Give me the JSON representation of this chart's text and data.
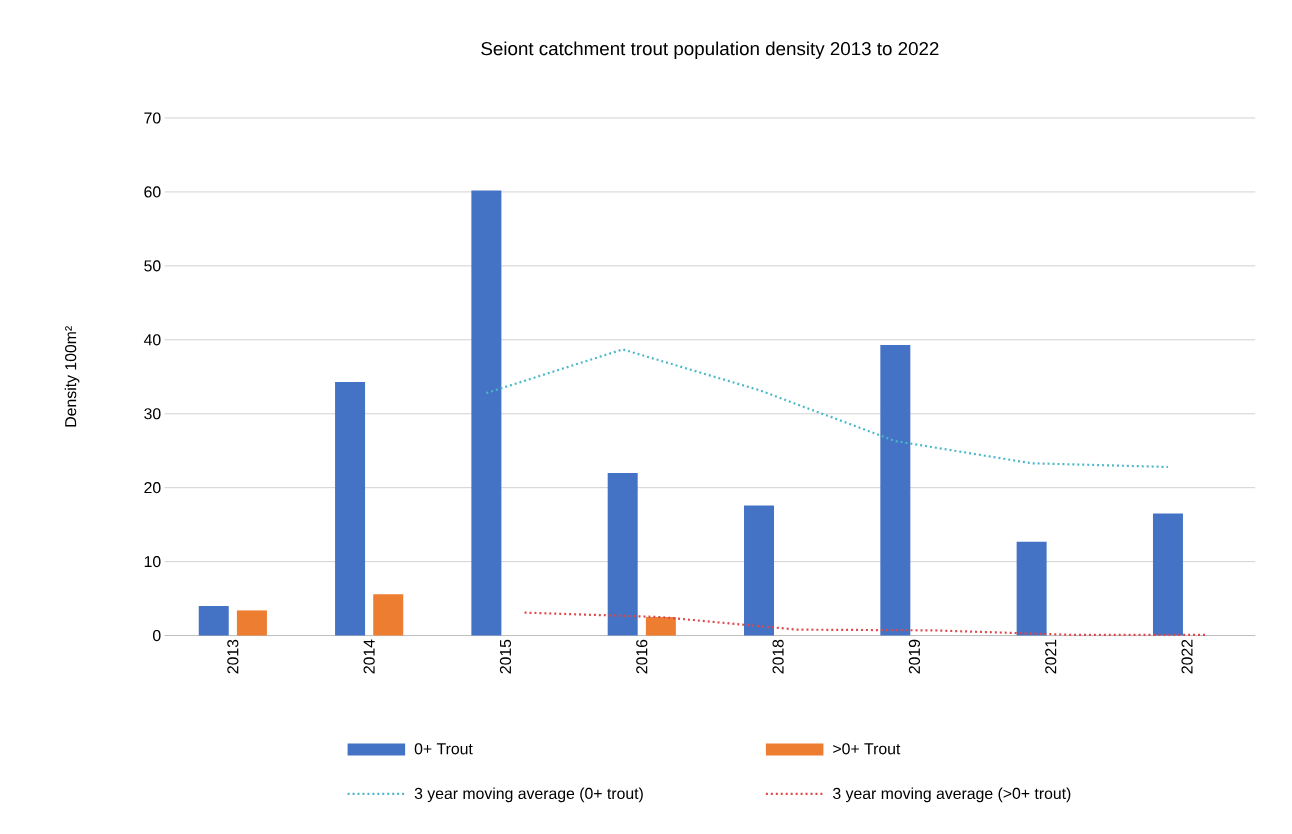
{
  "chart_data": {
    "type": "bar",
    "title": "Seiont catchment trout population density 2013 to 2022",
    "ylabel": "Density 100m²",
    "categories": [
      "2013",
      "2014",
      "2015",
      "2016",
      "2018",
      "2019",
      "2021",
      "2022"
    ],
    "series": [
      {
        "name": "0+ Trout",
        "color": "#4472c4",
        "values": [
          4.0,
          34.3,
          60.2,
          22.0,
          17.6,
          39.3,
          12.7,
          16.5
        ]
      },
      {
        "name": ">0+ Trout",
        "color": "#ed7d31",
        "values": [
          3.4,
          5.6,
          null,
          2.5,
          null,
          null,
          null,
          null
        ]
      },
      {
        "name": "3 year moving average (0+ trout)",
        "type": "line",
        "line_style": "dotted",
        "color": "#4bb8c8",
        "values": [
          null,
          null,
          32.8,
          38.7,
          33.2,
          26.3,
          23.3,
          22.8
        ]
      },
      {
        "name": "3 year moving average (>0+ trout)",
        "type": "line",
        "line_style": "dotted",
        "color": "#e0474c",
        "values": [
          null,
          null,
          3.1,
          2.5,
          0.8,
          0.7,
          0.1,
          0.1
        ]
      }
    ],
    "ylim": [
      0,
      70
    ],
    "yticks": [
      0,
      10,
      20,
      30,
      40,
      50,
      60,
      70
    ],
    "grid": "y",
    "legend": "bottom"
  }
}
